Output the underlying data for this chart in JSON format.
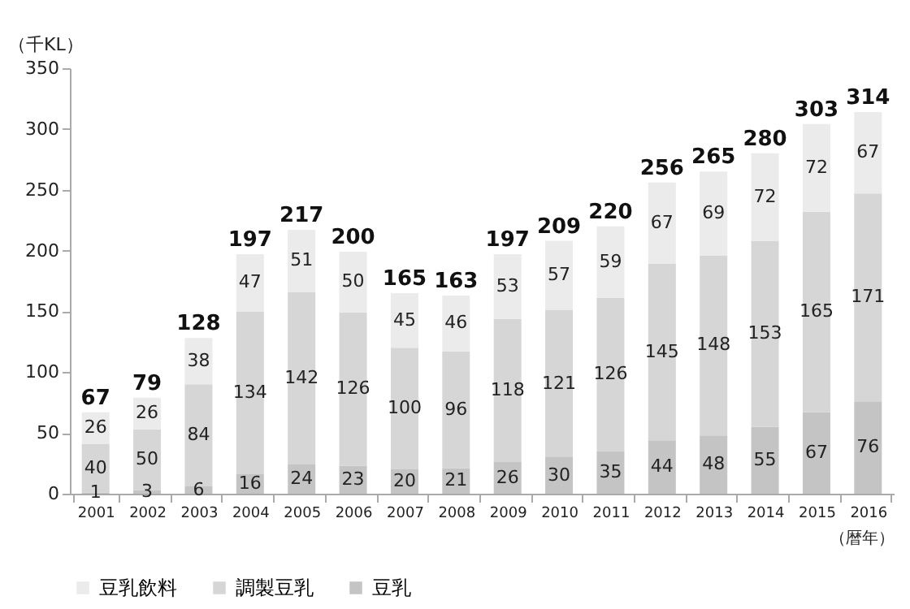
{
  "chart_data": {
    "type": "bar",
    "stacked": true,
    "data_labels": true,
    "ylabel": "（千KL）",
    "xlabel": "（暦年）",
    "categories": [
      "2001",
      "2002",
      "2003",
      "2004",
      "2005",
      "2006",
      "2007",
      "2008",
      "2009",
      "2010",
      "2011",
      "2012",
      "2013",
      "2014",
      "2015",
      "2016"
    ],
    "series": [
      {
        "name": "豆乳",
        "color": "#c4c4c4",
        "values": [
          1,
          3,
          6,
          16,
          24,
          23,
          20,
          21,
          26,
          30,
          35,
          44,
          48,
          55,
          67,
          76
        ]
      },
      {
        "name": "調製豆乳",
        "color": "#d6d6d6",
        "values": [
          40,
          50,
          84,
          134,
          142,
          126,
          100,
          96,
          118,
          121,
          126,
          145,
          148,
          153,
          165,
          171
        ]
      },
      {
        "name": "豆乳飲料",
        "color": "#ebebeb",
        "values": [
          26,
          26,
          38,
          47,
          51,
          50,
          45,
          46,
          53,
          57,
          59,
          67,
          69,
          72,
          72,
          67
        ]
      }
    ],
    "totals": [
      "67",
      "79",
      "128",
      "197",
      "217",
      "200",
      "165",
      "163",
      "197",
      "209",
      "220",
      "256",
      "265",
      "280",
      "303",
      "314"
    ],
    "ylim": [
      0,
      350
    ],
    "yticks": [
      0,
      50,
      100,
      150,
      200,
      250,
      300,
      350
    ],
    "grid": false,
    "legend": "bottom"
  }
}
